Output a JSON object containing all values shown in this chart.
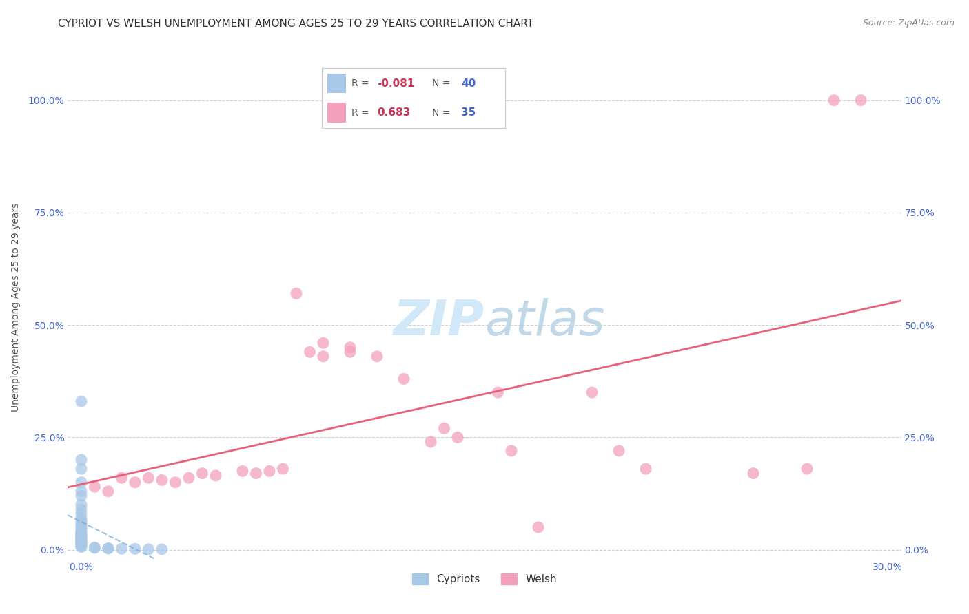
{
  "title": "CYPRIOT VS WELSH UNEMPLOYMENT AMONG AGES 25 TO 29 YEARS CORRELATION CHART",
  "source": "Source: ZipAtlas.com",
  "ylabel": "Unemployment Among Ages 25 to 29 years",
  "xlim": [
    0.0,
    0.3
  ],
  "ylim": [
    -0.02,
    1.1
  ],
  "ytick_labels": [
    "0.0%",
    "25.0%",
    "50.0%",
    "75.0%",
    "100.0%"
  ],
  "ytick_values": [
    0.0,
    0.25,
    0.5,
    0.75,
    1.0
  ],
  "right_ytick_labels": [
    "100.0%",
    "75.0%",
    "50.0%",
    "25.0%",
    "0.0%"
  ],
  "xtick_labels": [
    "0.0%",
    "30.0%"
  ],
  "xtick_values": [
    0.0,
    0.3
  ],
  "cypriot_color": "#a8c8e8",
  "welsh_color": "#f4a0bc",
  "cypriot_line_color": "#7ab0d8",
  "welsh_line_color": "#e8607a",
  "background_color": "#ffffff",
  "watermark_color": "#d0e8f8",
  "grid_color": "#d0d0d0",
  "axis_label_color": "#4466cc",
  "title_color": "#333333",
  "source_color": "#888888",
  "cypriot_scatter": [
    [
      0.0,
      0.33
    ],
    [
      0.0,
      0.2
    ],
    [
      0.0,
      0.18
    ],
    [
      0.0,
      0.15
    ],
    [
      0.0,
      0.13
    ],
    [
      0.0,
      0.12
    ],
    [
      0.0,
      0.1
    ],
    [
      0.0,
      0.09
    ],
    [
      0.0,
      0.08
    ],
    [
      0.0,
      0.07
    ],
    [
      0.0,
      0.065
    ],
    [
      0.0,
      0.06
    ],
    [
      0.0,
      0.055
    ],
    [
      0.0,
      0.05
    ],
    [
      0.0,
      0.045
    ],
    [
      0.0,
      0.04
    ],
    [
      0.0,
      0.038
    ],
    [
      0.0,
      0.035
    ],
    [
      0.0,
      0.032
    ],
    [
      0.0,
      0.03
    ],
    [
      0.0,
      0.028
    ],
    [
      0.0,
      0.026
    ],
    [
      0.0,
      0.024
    ],
    [
      0.0,
      0.022
    ],
    [
      0.0,
      0.02
    ],
    [
      0.0,
      0.018
    ],
    [
      0.0,
      0.016
    ],
    [
      0.0,
      0.014
    ],
    [
      0.0,
      0.012
    ],
    [
      0.0,
      0.01
    ],
    [
      0.0,
      0.008
    ],
    [
      0.0,
      0.006
    ],
    [
      0.005,
      0.005
    ],
    [
      0.005,
      0.004
    ],
    [
      0.01,
      0.003
    ],
    [
      0.01,
      0.003
    ],
    [
      0.015,
      0.002
    ],
    [
      0.02,
      0.002
    ],
    [
      0.025,
      0.001
    ],
    [
      0.03,
      0.001
    ]
  ],
  "welsh_scatter": [
    [
      0.005,
      0.14
    ],
    [
      0.01,
      0.13
    ],
    [
      0.015,
      0.16
    ],
    [
      0.02,
      0.15
    ],
    [
      0.025,
      0.16
    ],
    [
      0.03,
      0.155
    ],
    [
      0.035,
      0.15
    ],
    [
      0.04,
      0.16
    ],
    [
      0.045,
      0.17
    ],
    [
      0.05,
      0.165
    ],
    [
      0.06,
      0.175
    ],
    [
      0.065,
      0.17
    ],
    [
      0.07,
      0.175
    ],
    [
      0.075,
      0.18
    ],
    [
      0.08,
      0.57
    ],
    [
      0.085,
      0.44
    ],
    [
      0.09,
      0.46
    ],
    [
      0.09,
      0.43
    ],
    [
      0.1,
      0.44
    ],
    [
      0.1,
      0.45
    ],
    [
      0.11,
      0.43
    ],
    [
      0.12,
      0.38
    ],
    [
      0.13,
      0.24
    ],
    [
      0.135,
      0.27
    ],
    [
      0.14,
      0.25
    ],
    [
      0.155,
      0.35
    ],
    [
      0.16,
      0.22
    ],
    [
      0.17,
      0.05
    ],
    [
      0.19,
      0.35
    ],
    [
      0.2,
      0.22
    ],
    [
      0.21,
      0.18
    ],
    [
      0.25,
      0.17
    ],
    [
      0.27,
      0.18
    ],
    [
      0.28,
      1.0
    ],
    [
      0.29,
      1.0
    ]
  ],
  "title_fontsize": 11,
  "source_fontsize": 9,
  "axis_fontsize": 10,
  "tick_fontsize": 10
}
